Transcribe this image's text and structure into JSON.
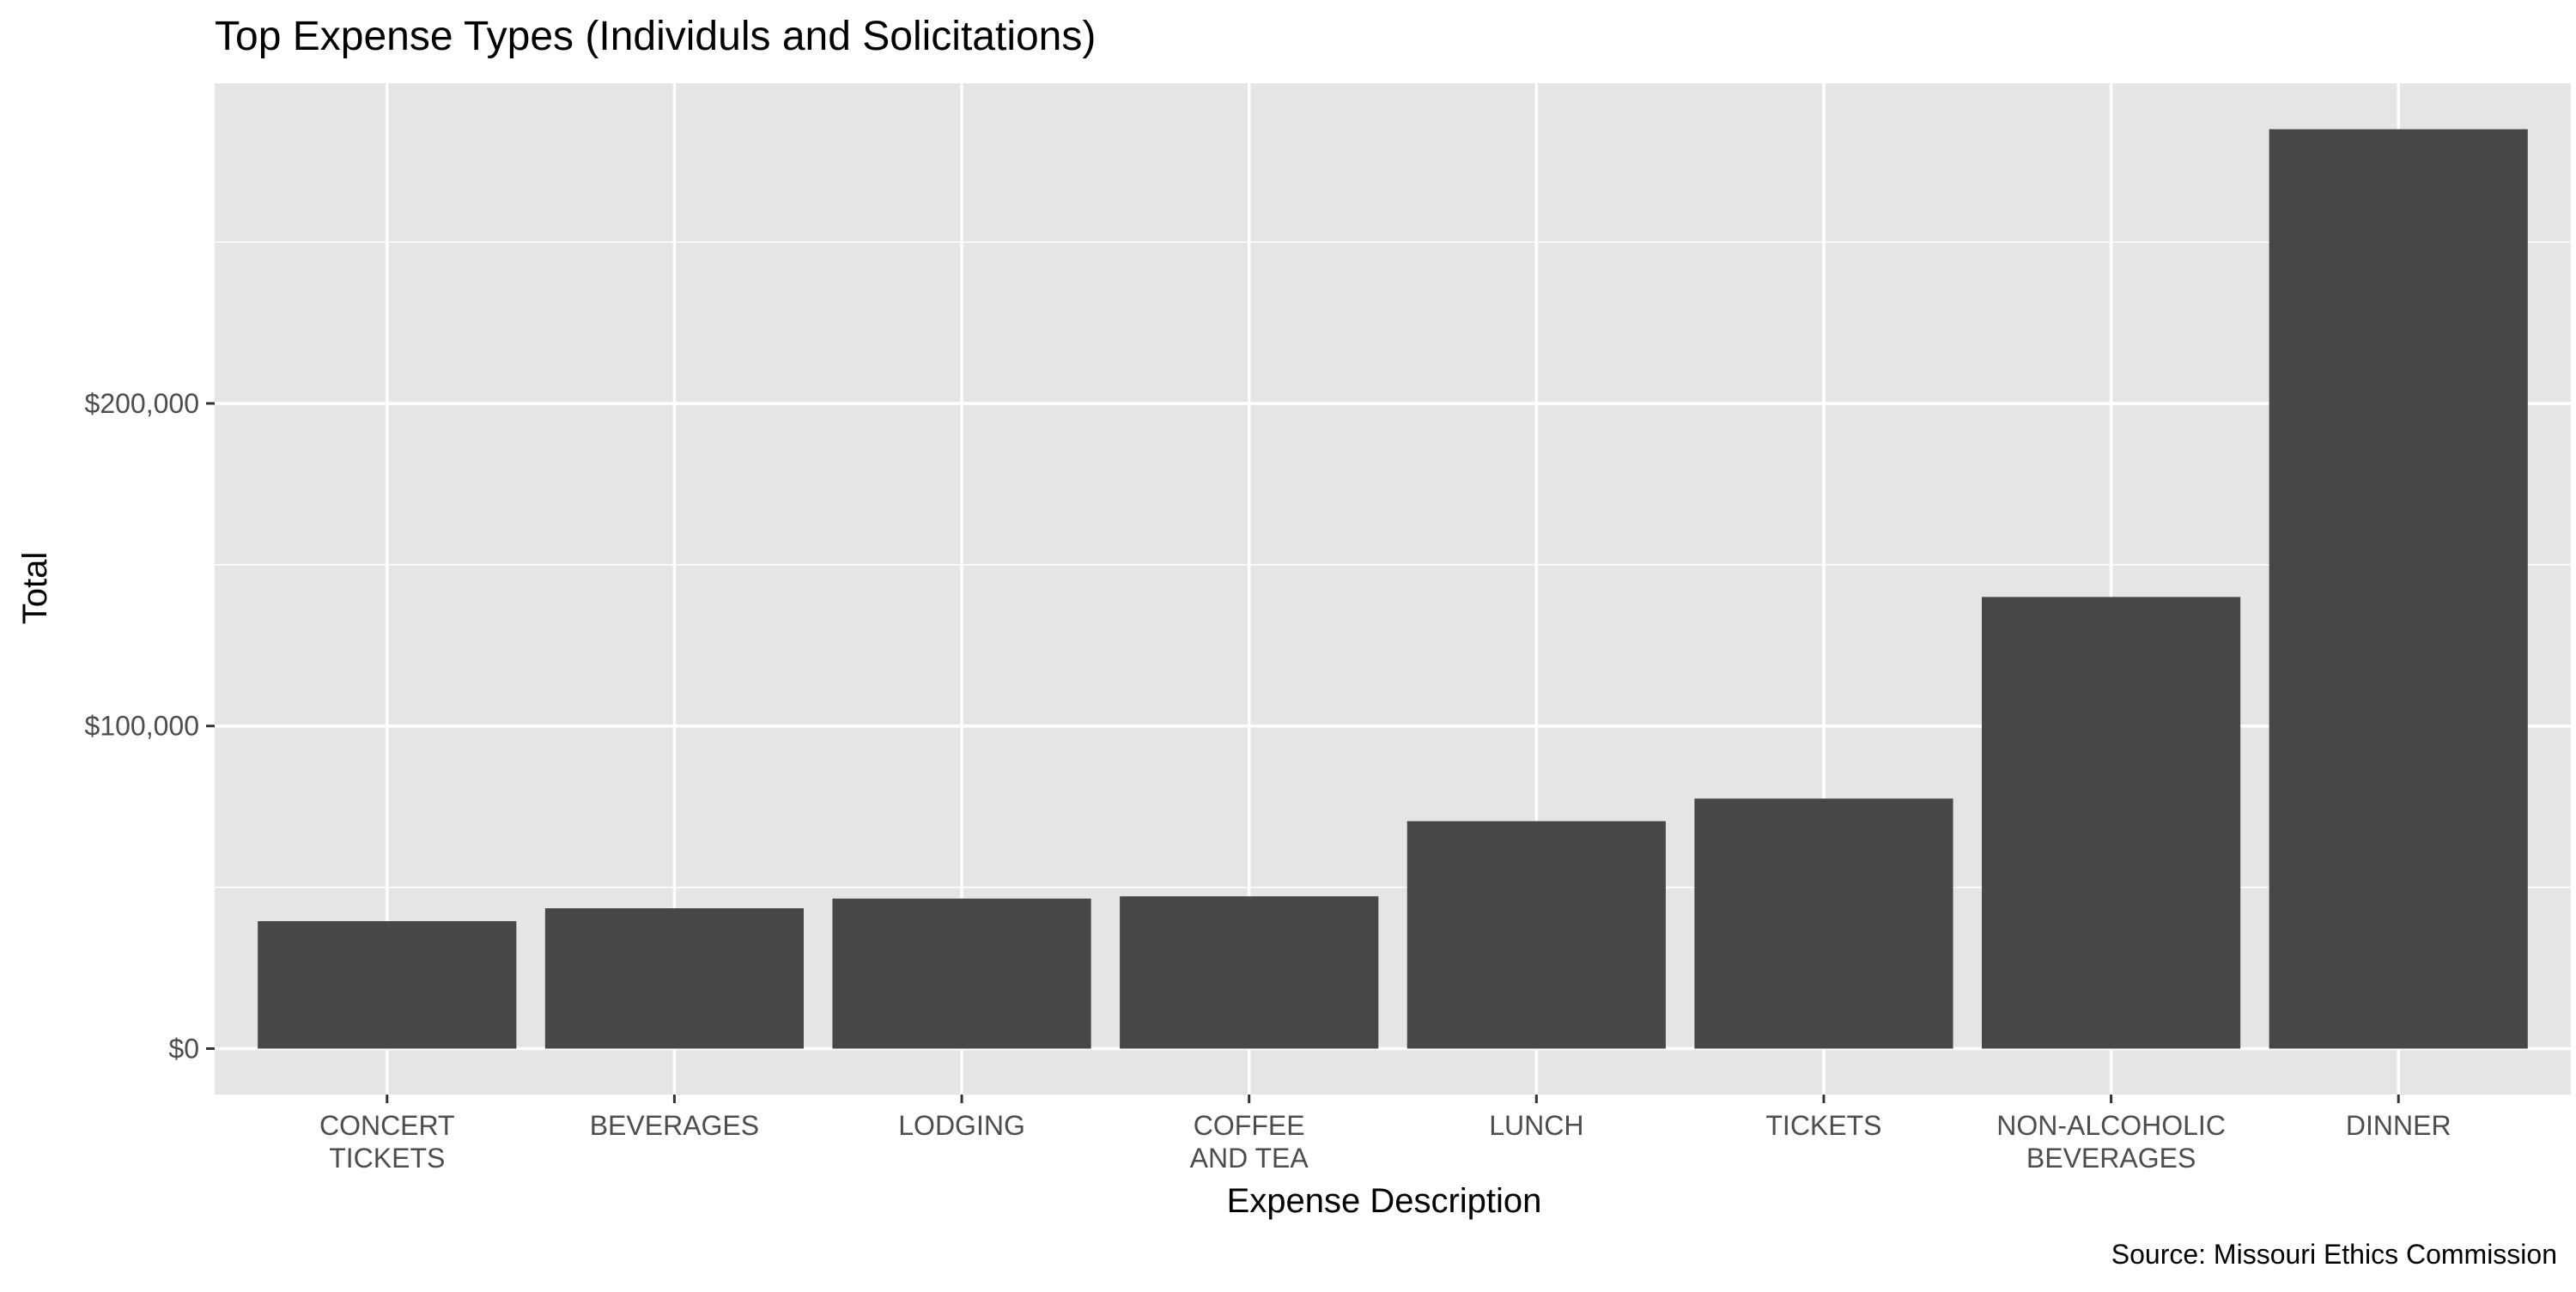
{
  "chart_data": {
    "type": "bar",
    "title": "Top Expense Types (Individuls and Solicitations)",
    "xlabel": "Expense Description",
    "ylabel": "Total",
    "caption": "Source: Missouri Ethics Commission",
    "categories": [
      [
        "CONCERT",
        "TICKETS"
      ],
      [
        "BEVERAGES"
      ],
      [
        "LODGING"
      ],
      [
        "COFFEE",
        "AND TEA"
      ],
      [
        "LUNCH"
      ],
      [
        "TICKETS"
      ],
      [
        "NON-ALCOHOLIC",
        "BEVERAGES"
      ],
      [
        "DINNER"
      ]
    ],
    "values": [
      39500,
      43500,
      46500,
      47200,
      70500,
      77500,
      140000,
      285000
    ],
    "ylim": [
      -14250,
      299250
    ],
    "yticks": [
      0,
      100000,
      200000
    ],
    "ytick_labels": [
      "$0",
      "$100,000",
      "$200,000"
    ],
    "grid": true,
    "colors": {
      "panel": "#e5e5e5",
      "bar": "#474747",
      "grid": "#ffffff",
      "text": "#000000",
      "tick_text": "#4d4d4d"
    }
  }
}
